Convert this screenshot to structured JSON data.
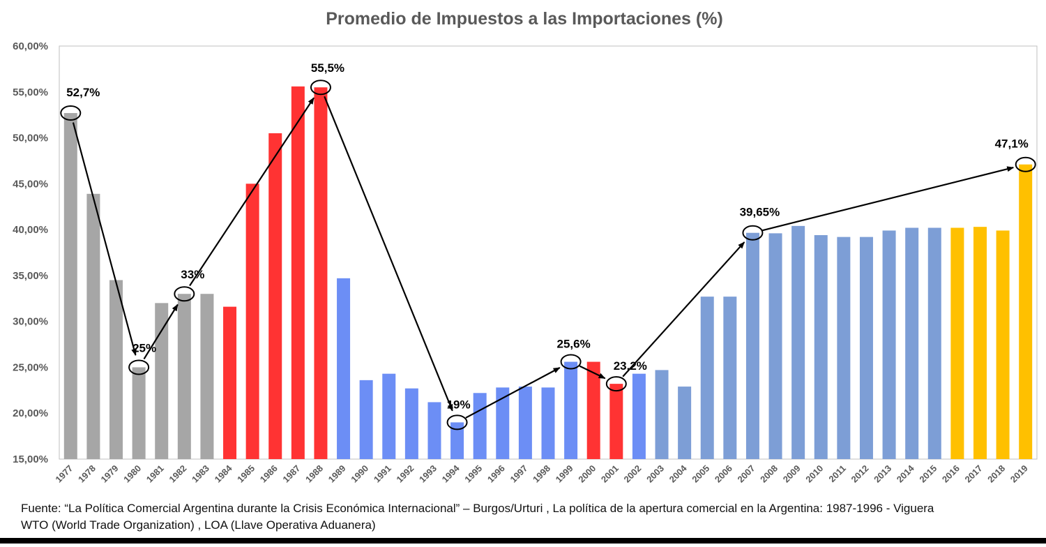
{
  "chart_data": {
    "type": "bar",
    "title": "Promedio de Impuestos a las Importaciones (%)",
    "xlabel": "",
    "ylabel": "",
    "ylim": [
      15,
      60
    ],
    "y_ticks": [
      "15,00%",
      "20,00%",
      "25,00%",
      "30,00%",
      "35,00%",
      "40,00%",
      "45,00%",
      "50,00%",
      "55,00%",
      "60,00%"
    ],
    "y_tick_values": [
      15,
      20,
      25,
      30,
      35,
      40,
      45,
      50,
      55,
      60
    ],
    "grid": false,
    "categories": [
      "1977",
      "1978",
      "1979",
      "1980",
      "1981",
      "1982",
      "1983",
      "1984",
      "1985",
      "1986",
      "1987",
      "1988",
      "1989",
      "1990",
      "1991",
      "1992",
      "1993",
      "1994",
      "1995",
      "1996",
      "1997",
      "1998",
      "1999",
      "2000",
      "2001",
      "2002",
      "2003",
      "2004",
      "2005",
      "2006",
      "2007",
      "2008",
      "2009",
      "2010",
      "2011",
      "2012",
      "2013",
      "2014",
      "2015",
      "2016",
      "2017",
      "2018",
      "2019"
    ],
    "values": [
      52.7,
      43.9,
      34.5,
      25.0,
      32.0,
      33.0,
      33.0,
      31.6,
      45.0,
      50.5,
      55.6,
      55.5,
      34.7,
      23.6,
      24.3,
      22.7,
      21.2,
      19.0,
      22.2,
      22.8,
      22.9,
      22.8,
      25.6,
      25.6,
      23.2,
      24.3,
      24.7,
      22.9,
      32.7,
      32.7,
      39.65,
      39.6,
      40.4,
      39.4,
      39.2,
      39.2,
      39.9,
      40.2,
      40.2,
      40.2,
      40.3,
      39.9,
      47.1
    ],
    "bar_colors": [
      "#A6A6A6",
      "#A6A6A6",
      "#A6A6A6",
      "#A6A6A6",
      "#A6A6A6",
      "#A6A6A6",
      "#A6A6A6",
      "#FF3333",
      "#FF3333",
      "#FF3333",
      "#FF3333",
      "#FF3333",
      "#6C8EF5",
      "#6C8EF5",
      "#6C8EF5",
      "#6C8EF5",
      "#6C8EF5",
      "#6C8EF5",
      "#6C8EF5",
      "#6C8EF5",
      "#6C8EF5",
      "#6C8EF5",
      "#6C8EF5",
      "#FF3333",
      "#FF3333",
      "#6C8EF5",
      "#7D9ED6",
      "#7D9ED6",
      "#7D9ED6",
      "#7D9ED6",
      "#7D9ED6",
      "#7D9ED6",
      "#7D9ED6",
      "#7D9ED6",
      "#7D9ED6",
      "#7D9ED6",
      "#7D9ED6",
      "#7D9ED6",
      "#7D9ED6",
      "#FFC000",
      "#FFC000",
      "#FFC000",
      "#FFC000"
    ],
    "annotations": [
      {
        "category": "1977",
        "value": 52.7,
        "label": "52,7%"
      },
      {
        "category": "1980",
        "value": 25.0,
        "label": "25%"
      },
      {
        "category": "1982",
        "value": 33.0,
        "label": "33%"
      },
      {
        "category": "1988",
        "value": 55.5,
        "label": "55,5%"
      },
      {
        "category": "1994",
        "value": 19.0,
        "label": "19%"
      },
      {
        "category": "1999",
        "value": 25.6,
        "label": "25,6%"
      },
      {
        "category": "2001",
        "value": 23.2,
        "label": "23,2%"
      },
      {
        "category": "2007",
        "value": 39.65,
        "label": "39,65%"
      },
      {
        "category": "2019",
        "value": 47.1,
        "label": "47,1%"
      }
    ],
    "trend_arrows": [
      {
        "from": "1977",
        "to": "1980"
      },
      {
        "from": "1980",
        "to": "1982"
      },
      {
        "from": "1982",
        "to": "1988"
      },
      {
        "from": "1988",
        "to": "1994"
      },
      {
        "from": "1994",
        "to": "1999"
      },
      {
        "from": "1999",
        "to": "2001"
      },
      {
        "from": "2001",
        "to": "2007"
      },
      {
        "from": "2007",
        "to": "2019"
      }
    ]
  },
  "footer": {
    "line1": "Fuente: “La Política Comercial Argentina durante la Crisis Económica Internacional” – Burgos/Urturi , La política de la apertura comercial en la Argentina: 1987-1996 - Viguera",
    "line2": "WTO (World Trade Organization) , LOA (Llave Operativa Aduanera)"
  }
}
